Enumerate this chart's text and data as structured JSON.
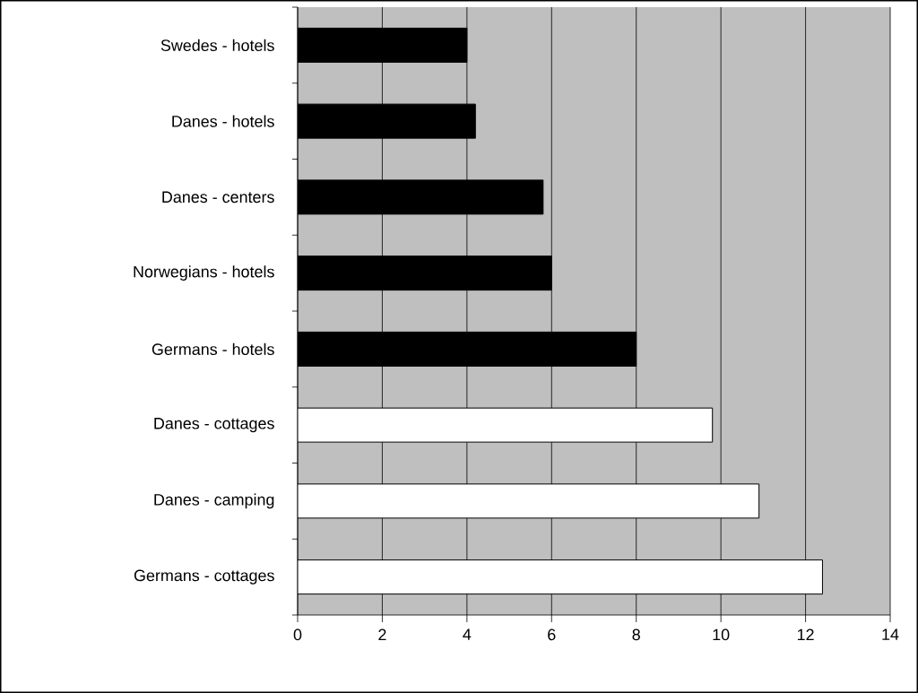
{
  "chart_data": {
    "type": "bar",
    "orientation": "horizontal",
    "categories": [
      "Swedes - hotels",
      "Danes - hotels",
      "Danes - centers",
      "Norwegians - hotels",
      "Germans - hotels",
      "Danes - cottages",
      "Danes - camping",
      "Germans - cottages"
    ],
    "values": [
      4.0,
      4.2,
      5.8,
      6.0,
      8.0,
      9.8,
      10.9,
      12.4
    ],
    "colors": [
      "#000000",
      "#000000",
      "#000000",
      "#000000",
      "#000000",
      "#ffffff",
      "#ffffff",
      "#ffffff"
    ],
    "xlim": [
      0,
      14
    ],
    "xticks": [
      0,
      2,
      4,
      6,
      8,
      10,
      12,
      14
    ],
    "grid": "x"
  }
}
